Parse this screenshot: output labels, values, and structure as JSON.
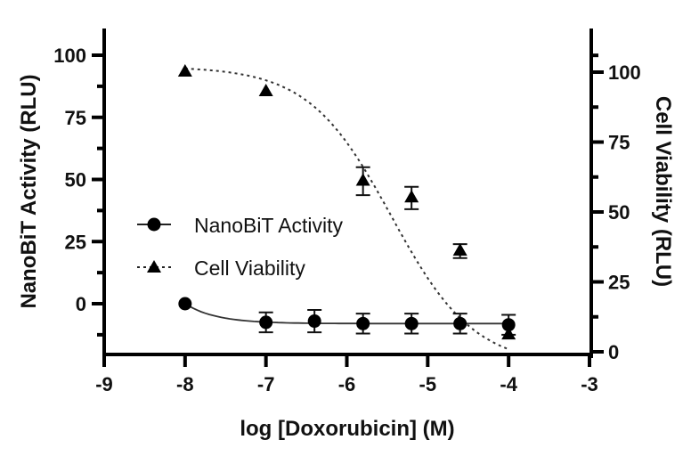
{
  "chart_data": {
    "type": "scatter",
    "title": "",
    "xlabel": "log [Doxorubicin] (M)",
    "ylabel": "NanoBiT Activity (RLU)",
    "y2label": "Cell Viability (RLU)",
    "xlim": [
      -9,
      -3
    ],
    "ylim": [
      -20.5,
      113
    ],
    "y2lim": [
      -1,
      113
    ],
    "x_ticks": [
      -9,
      -8,
      -7,
      -6,
      -5,
      -4,
      -3
    ],
    "y_ticks": [
      0,
      25,
      50,
      75,
      100
    ],
    "y2_ticks": [
      0,
      25,
      50,
      75,
      100
    ],
    "grid": false,
    "legend_position": "inside-left-middle",
    "series": [
      {
        "name": "NanoBiT Activity",
        "axis": "left",
        "marker": "circle",
        "line": "solid",
        "x": [
          -8,
          -7,
          -6.4,
          -5.8,
          -5.2,
          -4.6,
          -4
        ],
        "values": [
          0,
          -7.5,
          -7,
          -8,
          -8,
          -8,
          -8.5
        ],
        "error": [
          0,
          4,
          4.5,
          4,
          4,
          4,
          4
        ]
      },
      {
        "name": "Cell Viability",
        "axis": "right",
        "marker": "triangle",
        "line": "dotted",
        "x": [
          -8,
          -7,
          -5.8,
          -5.2,
          -4.6,
          -4
        ],
        "values": [
          100,
          93,
          61,
          55,
          36,
          6
        ],
        "error": [
          0,
          0,
          5,
          4,
          2.5,
          0
        ]
      }
    ]
  },
  "legend": {
    "items": [
      {
        "label": "NanoBiT Activity"
      },
      {
        "label": "Cell Viability"
      }
    ]
  },
  "axes": {
    "x_title": "log [Doxorubicin] (M)",
    "y_left_title": "NanoBiT Activity (RLU)",
    "y_right_title": "Cell Viability (RLU)"
  }
}
